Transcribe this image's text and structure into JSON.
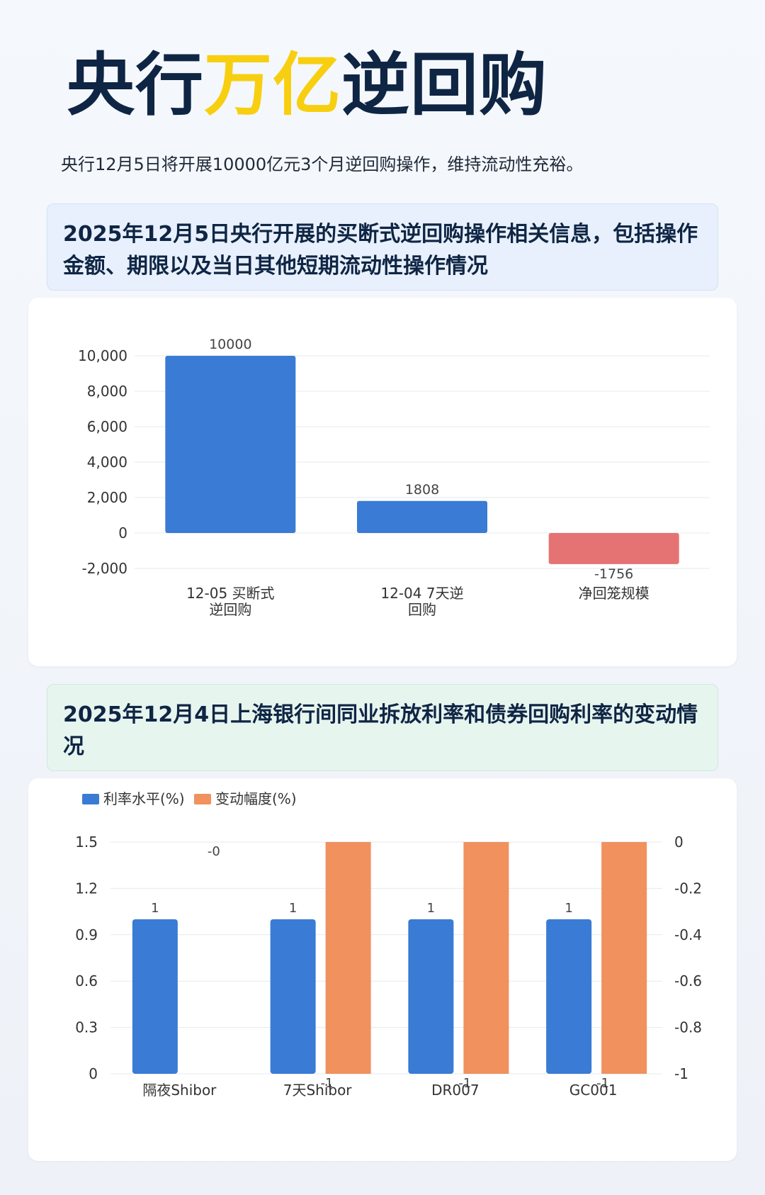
{
  "title": {
    "part1": "央行",
    "highlight": "万亿",
    "part2": "逆回购"
  },
  "subtitle": "央行12月5日将开展10000亿元3个月逆回购操作，维持流动性充裕。",
  "colors": {
    "title_dark": "#0f2544",
    "highlight": "#f7cf10",
    "bar_blue": "#3a7bd5",
    "bar_red": "#e57373",
    "bar_orange": "#f0915e"
  },
  "section1": {
    "heading": "2025年12月5日央行开展的买断式逆回购操作相关信息，包括操作金额、期限以及当日其他短期流动性操作情况"
  },
  "section2": {
    "heading": "2025年12月4日上海银行间同业拆放利率和债券回购利率的变动情况"
  },
  "chart_data": [
    {
      "type": "bar",
      "categories": [
        [
          "12-05 买断式",
          "逆回购"
        ],
        [
          "12-04 7天逆",
          "回购"
        ],
        [
          "净回笼规模"
        ]
      ],
      "values": [
        10000,
        1808,
        -1756
      ],
      "data_labels": [
        "10000",
        "1808",
        "-1756"
      ],
      "colors": [
        "#3a7bd5",
        "#3a7bd5",
        "#e57373"
      ],
      "ylim": [
        -2000,
        10000
      ],
      "yticks": [
        -2000,
        0,
        2000,
        4000,
        6000,
        8000,
        10000
      ],
      "ytick_labels": [
        "-2,000",
        "0",
        "2,000",
        "4,000",
        "6,000",
        "8,000",
        "10,000"
      ],
      "grid": true
    },
    {
      "type": "bar",
      "categories": [
        "隔夜Shibor",
        "7天Shibor",
        "DR007",
        "GC001"
      ],
      "series": [
        {
          "name": "利率水平(%)",
          "axis": "left",
          "color": "#3a7bd5",
          "values": [
            1,
            1,
            1,
            1
          ],
          "data_labels": [
            "1",
            "1",
            "1",
            "1"
          ]
        },
        {
          "name": "变动幅度(%)",
          "axis": "right",
          "color": "#f0915e",
          "values": [
            0,
            -1,
            -1,
            -1
          ],
          "data_labels": [
            "-0",
            "-1",
            "-1",
            "-1"
          ]
        }
      ],
      "ylim_left": [
        0,
        1.5
      ],
      "yticks_left": [
        "0",
        "0.3",
        "0.6",
        "0.9",
        "1.2",
        "1.5"
      ],
      "ylim_right": [
        -1,
        0
      ],
      "yticks_right": [
        "-1",
        "-0.8",
        "-0.6",
        "-0.4",
        "-0.2",
        "0"
      ],
      "legend": "top-left",
      "grid": true
    }
  ]
}
